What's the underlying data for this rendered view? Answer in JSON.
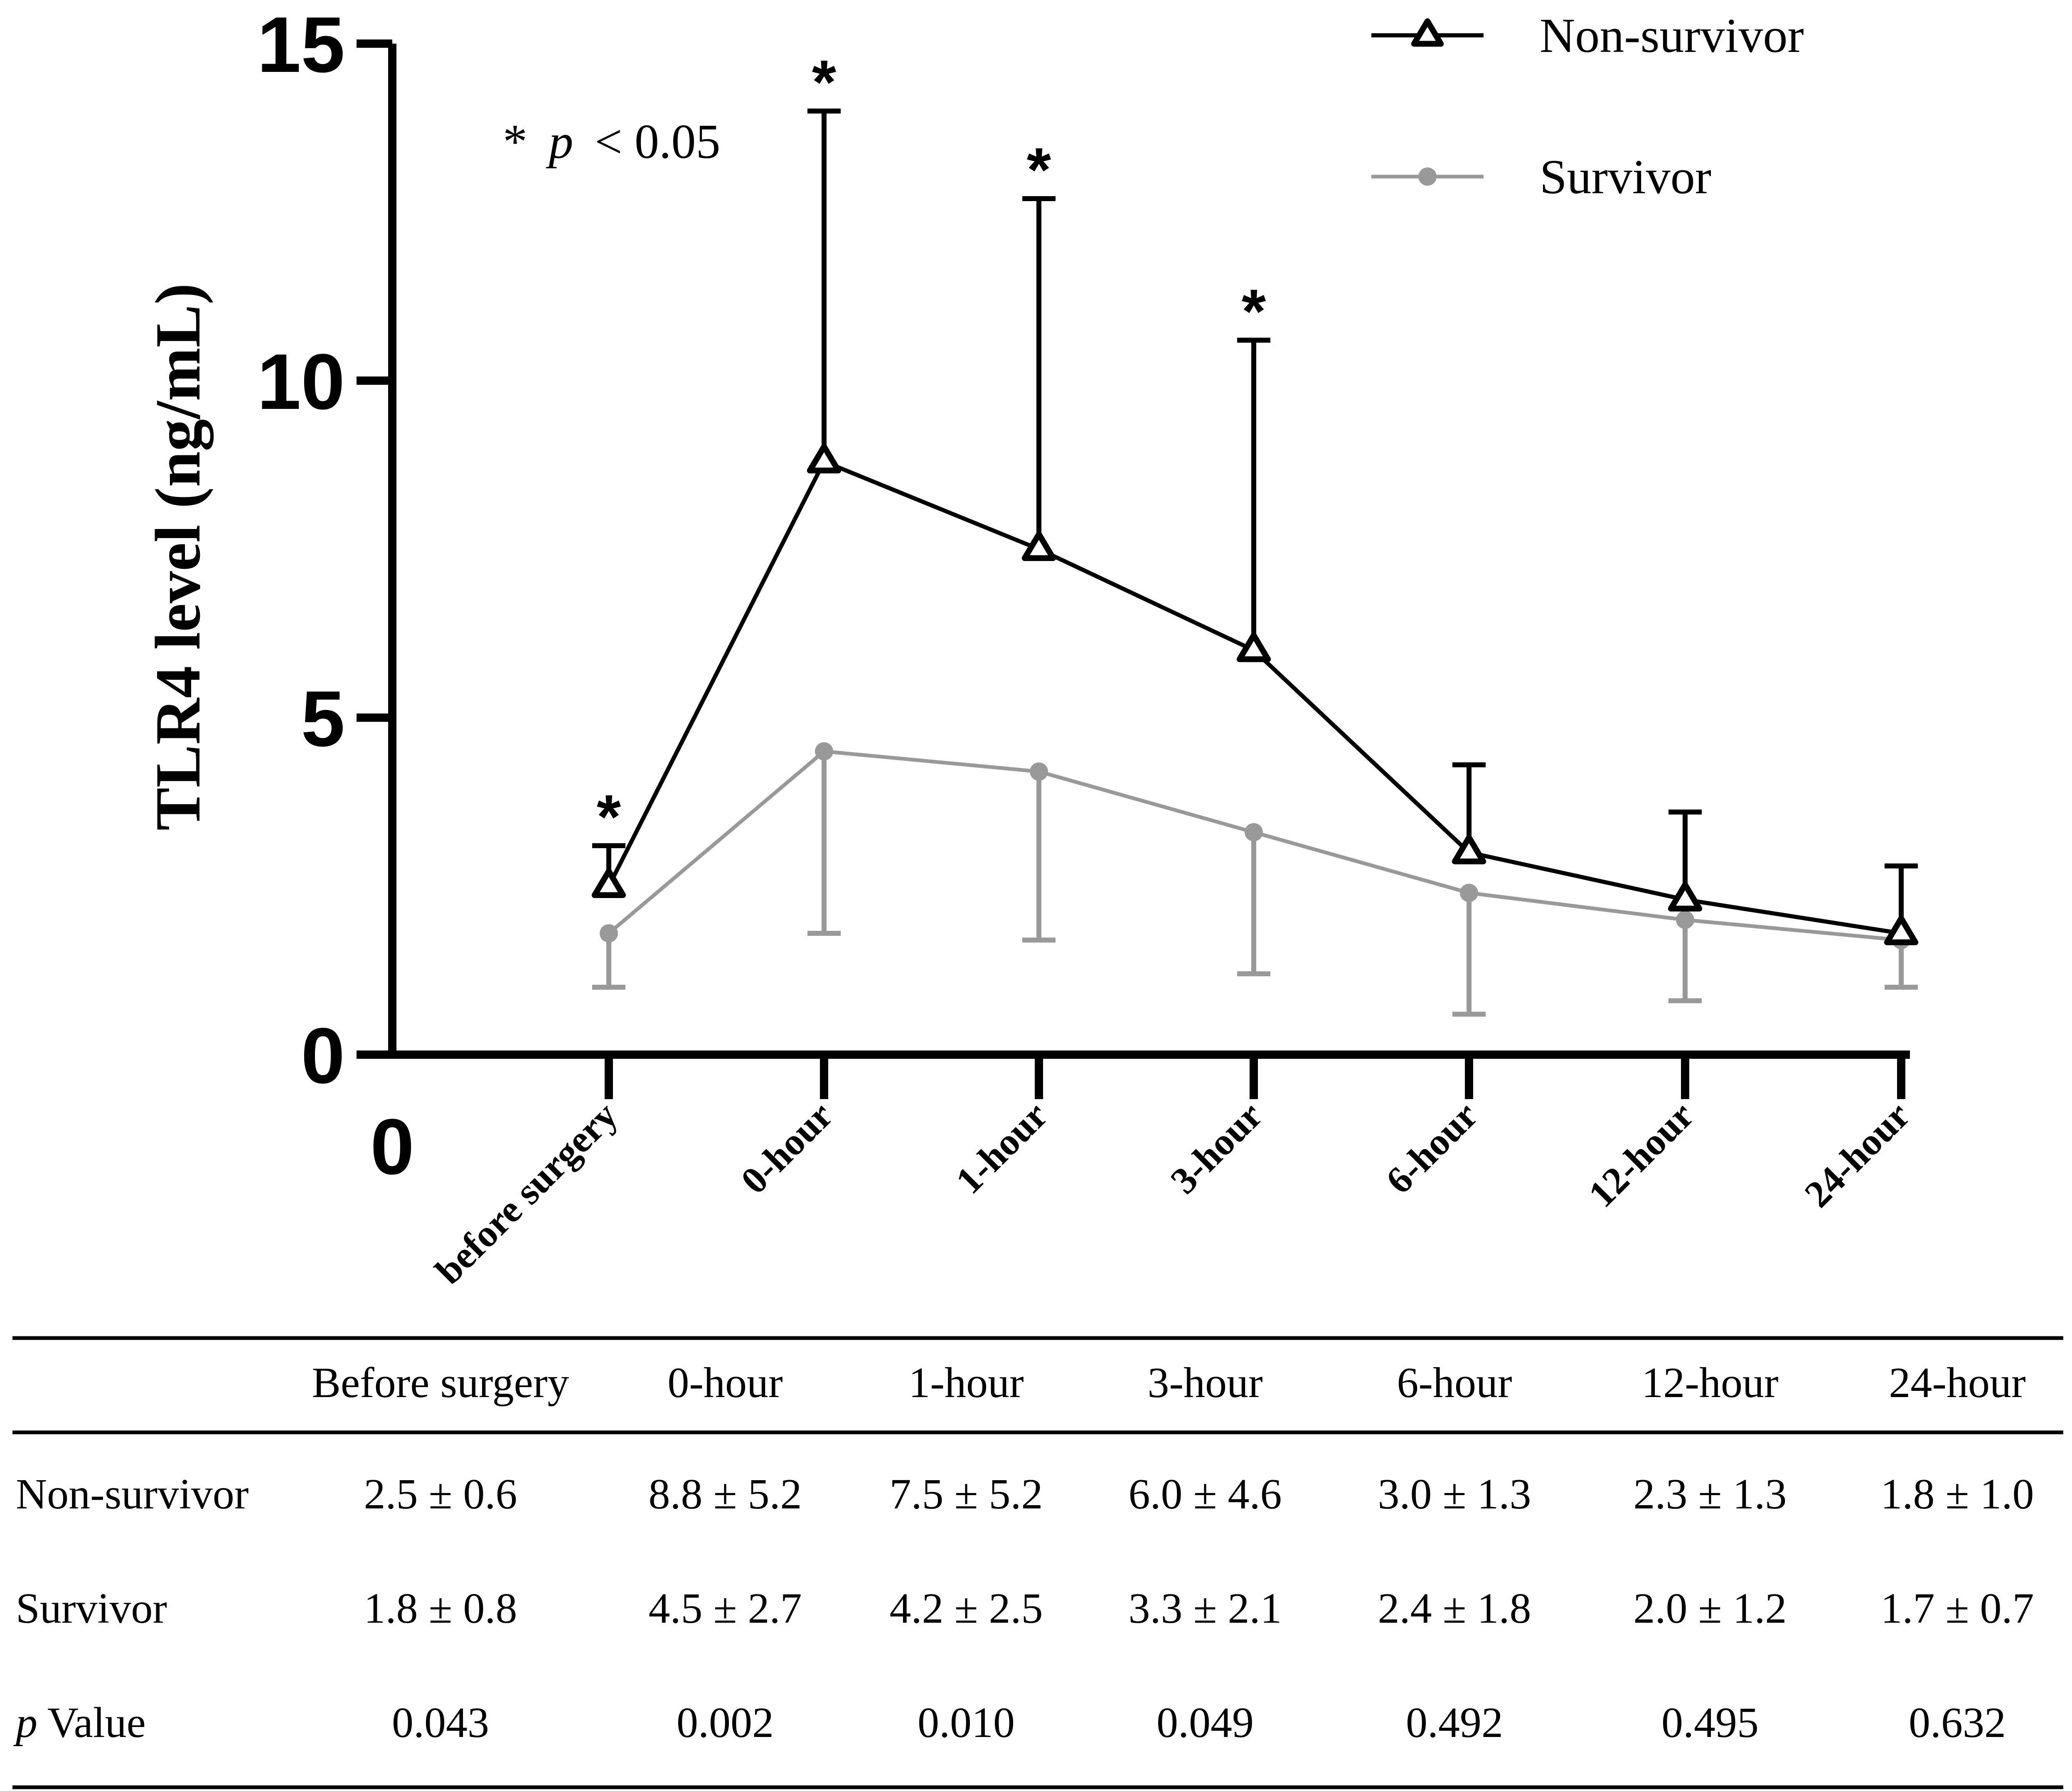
{
  "chart_data": {
    "type": "line",
    "ylabel": "TLR4 level (ng/mL)",
    "xlabel": "",
    "x_origin_label": "0",
    "ylim": [
      0,
      15
    ],
    "yticks": [
      0,
      5,
      10,
      15
    ],
    "categories": [
      "before surgery",
      "0-hour",
      "1-hour",
      "3-hour",
      "6-hour",
      "12-hour",
      "24-hour"
    ],
    "series": [
      {
        "name": "Non-survivor",
        "color": "#000000",
        "marker": "triangle",
        "values": [
          2.5,
          8.8,
          7.5,
          6.0,
          3.0,
          2.3,
          1.8
        ],
        "errors": [
          0.6,
          5.2,
          5.2,
          4.6,
          1.3,
          1.3,
          1.0
        ],
        "error_direction": "up"
      },
      {
        "name": "Survivor",
        "color": "#999999",
        "marker": "circle",
        "values": [
          1.8,
          4.5,
          4.2,
          3.3,
          2.4,
          2.0,
          1.7
        ],
        "errors": [
          0.8,
          2.7,
          2.5,
          2.1,
          1.8,
          1.2,
          0.7
        ],
        "error_direction": "down"
      }
    ],
    "significant": [
      true,
      true,
      true,
      true,
      false,
      false,
      false
    ],
    "significance_marker": "*",
    "annotation": {
      "star": "*",
      "p": "p",
      "rest": "< 0.05"
    },
    "legend_position": "top-right",
    "grid": false
  },
  "table": {
    "headers": [
      "",
      "Before surgery",
      "0-hour",
      "1-hour",
      "3-hour",
      "6-hour",
      "12-hour",
      "24-hour"
    ],
    "rows": [
      {
        "label": "Non-survivor",
        "label_italic": "",
        "cells": [
          "2.5 ± 0.6",
          "8.8 ± 5.2",
          "7.5 ± 5.2",
          "6.0 ± 4.6",
          "3.0 ± 1.3",
          "2.3 ± 1.3",
          "1.8 ± 1.0"
        ]
      },
      {
        "label": "Survivor",
        "label_italic": "",
        "cells": [
          "1.8 ± 0.8",
          "4.5 ± 2.7",
          "4.2 ± 2.5",
          "3.3 ± 2.1",
          "2.4 ± 1.8",
          "2.0 ± 1.2",
          "1.7 ± 0.7"
        ]
      },
      {
        "label": "Value",
        "label_italic": "p",
        "cells": [
          "0.043",
          "0.002",
          "0.010",
          "0.049",
          "0.492",
          "0.495",
          "0.632"
        ]
      }
    ]
  }
}
